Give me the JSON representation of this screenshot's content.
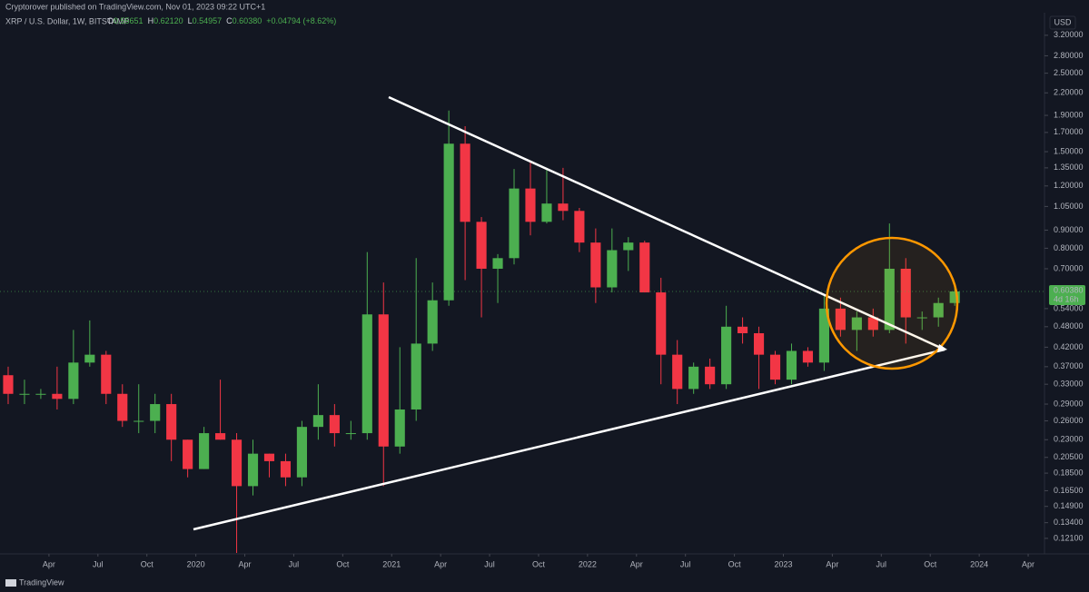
{
  "header": {
    "published": "Cryptorover published on TradingView.com, Nov 01, 2023 09:22 UTC+1",
    "symbol": "XRP / U.S. Dollar, 1W, BITSTAMP",
    "ohlc": [
      {
        "key": "O",
        "value": "0.55651"
      },
      {
        "key": "H",
        "value": "0.62120"
      },
      {
        "key": "L",
        "value": "0.54957"
      },
      {
        "key": "C",
        "value": "0.60380"
      }
    ],
    "change": "+0.04794 (+8.62%)"
  },
  "footer": {
    "brand": "TradingView"
  },
  "chart_data": {
    "type": "candlestick",
    "currency": "USD",
    "log_scale": true,
    "grid": false,
    "up_color": "#4caf50",
    "down_color": "#f23645",
    "last_label": "0.60380",
    "countdown": "4d 16h",
    "xlim": [
      "2019-01",
      "2024-05"
    ],
    "ylim": [
      0.114,
      3.62
    ],
    "xticks": [
      {
        "value": "2019-04",
        "label": "Apr"
      },
      {
        "value": "2019-07",
        "label": "Jul"
      },
      {
        "value": "2019-10",
        "label": "Oct"
      },
      {
        "value": "2020-01",
        "label": "2020"
      },
      {
        "value": "2020-04",
        "label": "Apr"
      },
      {
        "value": "2020-07",
        "label": "Jul"
      },
      {
        "value": "2020-10",
        "label": "Oct"
      },
      {
        "value": "2021-01",
        "label": "2021"
      },
      {
        "value": "2021-04",
        "label": "Apr"
      },
      {
        "value": "2021-07",
        "label": "Jul"
      },
      {
        "value": "2021-10",
        "label": "Oct"
      },
      {
        "value": "2022-01",
        "label": "2022"
      },
      {
        "value": "2022-04",
        "label": "Apr"
      },
      {
        "value": "2022-07",
        "label": "Jul"
      },
      {
        "value": "2022-10",
        "label": "Oct"
      },
      {
        "value": "2023-01",
        "label": "2023"
      },
      {
        "value": "2023-04",
        "label": "Apr"
      },
      {
        "value": "2023-07",
        "label": "Jul"
      },
      {
        "value": "2023-10",
        "label": "Oct"
      },
      {
        "value": "2024-01",
        "label": "2024"
      },
      {
        "value": "2024-04",
        "label": "Apr"
      }
    ],
    "yticks": [
      {
        "value": 0.121,
        "label": "0.12100"
      },
      {
        "value": 0.134,
        "label": "0.13400"
      },
      {
        "value": 0.149,
        "label": "0.14900"
      },
      {
        "value": 0.165,
        "label": "0.16500"
      },
      {
        "value": 0.185,
        "label": "0.18500"
      },
      {
        "value": 0.205,
        "label": "0.20500"
      },
      {
        "value": 0.23,
        "label": "0.23000"
      },
      {
        "value": 0.26,
        "label": "0.26000"
      },
      {
        "value": 0.29,
        "label": "0.29000"
      },
      {
        "value": 0.33,
        "label": "0.33000"
      },
      {
        "value": 0.37,
        "label": "0.37000"
      },
      {
        "value": 0.42,
        "label": "0.42000"
      },
      {
        "value": 0.48,
        "label": "0.48000"
      },
      {
        "value": 0.54,
        "label": "0.54000"
      },
      {
        "value": 0.7,
        "label": "0.70000"
      },
      {
        "value": 0.8,
        "label": "0.80000"
      },
      {
        "value": 0.9,
        "label": "0.90000"
      },
      {
        "value": 1.05,
        "label": "1.05000"
      },
      {
        "value": 1.2,
        "label": "1.20000"
      },
      {
        "value": 1.35,
        "label": "1.35000"
      },
      {
        "value": 1.5,
        "label": "1.50000"
      },
      {
        "value": 1.7,
        "label": "1.70000"
      },
      {
        "value": 1.9,
        "label": "1.90000"
      },
      {
        "value": 2.2,
        "label": "2.20000"
      },
      {
        "value": 2.5,
        "label": "2.50000"
      },
      {
        "value": 2.8,
        "label": "2.80000"
      },
      {
        "value": 3.2,
        "label": "3.20000"
      }
    ],
    "x": [
      "2019-01",
      "2019-02",
      "2019-03",
      "2019-04",
      "2019-05",
      "2019-06",
      "2019-07",
      "2019-08",
      "2019-09",
      "2019-10",
      "2019-11",
      "2019-12",
      "2020-01",
      "2020-02",
      "2020-03",
      "2020-04",
      "2020-05",
      "2020-06",
      "2020-07",
      "2020-08",
      "2020-09",
      "2020-10",
      "2020-11",
      "2020-12",
      "2021-01",
      "2021-02",
      "2021-03",
      "2021-04",
      "2021-05",
      "2021-06",
      "2021-07",
      "2021-08",
      "2021-09",
      "2021-10",
      "2021-11",
      "2021-12",
      "2022-01",
      "2022-02",
      "2022-03",
      "2022-04",
      "2022-05",
      "2022-06",
      "2022-07",
      "2022-08",
      "2022-09",
      "2022-10",
      "2022-11",
      "2022-12",
      "2023-01",
      "2023-02",
      "2023-03",
      "2023-04",
      "2023-05",
      "2023-06",
      "2023-07",
      "2023-08",
      "2023-09",
      "2023-10",
      "2023-11"
    ],
    "open": [
      0.35,
      0.31,
      0.31,
      0.31,
      0.3,
      0.38,
      0.4,
      0.31,
      0.26,
      0.26,
      0.29,
      0.23,
      0.19,
      0.24,
      0.23,
      0.17,
      0.21,
      0.2,
      0.18,
      0.25,
      0.27,
      0.24,
      0.24,
      0.52,
      0.22,
      0.28,
      0.43,
      0.57,
      1.58,
      0.95,
      0.7,
      0.75,
      1.18,
      0.95,
      1.07,
      1.02,
      0.83,
      0.62,
      0.79,
      0.83,
      0.6,
      0.4,
      0.32,
      0.37,
      0.33,
      0.48,
      0.46,
      0.4,
      0.34,
      0.41,
      0.38,
      0.54,
      0.47,
      0.51,
      0.47,
      0.7,
      0.51,
      0.51,
      0.56
    ],
    "high": [
      0.37,
      0.34,
      0.32,
      0.37,
      0.47,
      0.5,
      0.41,
      0.33,
      0.33,
      0.31,
      0.31,
      0.23,
      0.25,
      0.34,
      0.24,
      0.23,
      0.21,
      0.21,
      0.26,
      0.33,
      0.29,
      0.26,
      0.78,
      0.64,
      0.42,
      0.75,
      0.64,
      1.96,
      1.77,
      0.98,
      0.77,
      1.34,
      1.41,
      1.35,
      1.35,
      1.04,
      0.91,
      0.91,
      0.86,
      0.84,
      0.66,
      0.44,
      0.38,
      0.39,
      0.55,
      0.51,
      0.48,
      0.41,
      0.43,
      0.42,
      0.59,
      0.58,
      0.53,
      0.54,
      0.94,
      0.75,
      0.53,
      0.58,
      0.6212
    ],
    "low": [
      0.29,
      0.29,
      0.3,
      0.28,
      0.29,
      0.37,
      0.29,
      0.25,
      0.24,
      0.24,
      0.2,
      0.18,
      0.19,
      0.23,
      0.11,
      0.16,
      0.18,
      0.17,
      0.17,
      0.23,
      0.22,
      0.23,
      0.23,
      0.17,
      0.21,
      0.26,
      0.41,
      0.55,
      0.65,
      0.51,
      0.56,
      0.72,
      0.87,
      0.94,
      0.96,
      0.78,
      0.56,
      0.6,
      0.69,
      0.6,
      0.33,
      0.29,
      0.31,
      0.32,
      0.32,
      0.43,
      0.32,
      0.33,
      0.33,
      0.37,
      0.36,
      0.45,
      0.41,
      0.45,
      0.46,
      0.43,
      0.47,
      0.48,
      0.55
    ],
    "close": [
      0.31,
      0.31,
      0.31,
      0.3,
      0.38,
      0.4,
      0.31,
      0.26,
      0.26,
      0.29,
      0.23,
      0.19,
      0.24,
      0.23,
      0.17,
      0.21,
      0.2,
      0.18,
      0.25,
      0.27,
      0.24,
      0.24,
      0.52,
      0.22,
      0.28,
      0.43,
      0.57,
      1.58,
      0.95,
      0.7,
      0.75,
      1.18,
      0.95,
      1.07,
      1.02,
      0.83,
      0.62,
      0.79,
      0.83,
      0.6,
      0.4,
      0.32,
      0.37,
      0.33,
      0.48,
      0.46,
      0.4,
      0.34,
      0.41,
      0.38,
      0.54,
      0.47,
      0.51,
      0.47,
      0.7,
      0.51,
      0.51,
      0.56,
      0.6038
    ]
  }
}
